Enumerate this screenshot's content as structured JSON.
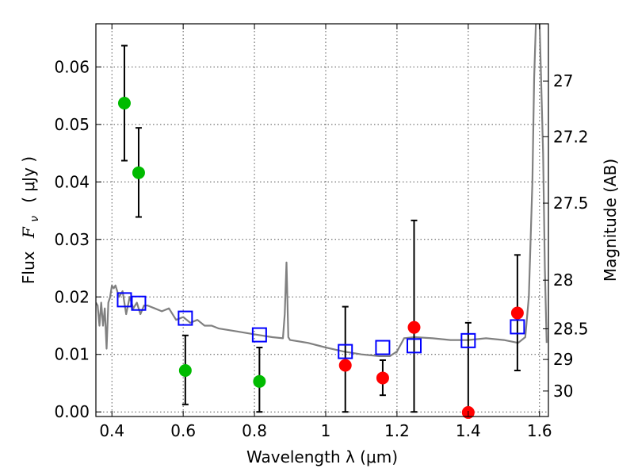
{
  "chart_data": {
    "type": "scatter",
    "xlabel": "Wavelength  λ (μm)",
    "ylabel": "Flux  F_ν  ( μJy )",
    "ylabel_parts": {
      "prefix": "Flux",
      "symbol": "F",
      "sub": "ν",
      "unit": "( μJy )"
    },
    "ylabel_right": "Magnitude (AB)",
    "xlim": [
      0.355,
      1.625
    ],
    "ylim": [
      -0.0008,
      0.0675
    ],
    "grid": true,
    "x_ticks": [
      {
        "value": 0.4,
        "label": "0.4"
      },
      {
        "value": 0.6,
        "label": "0.6"
      },
      {
        "value": 0.8,
        "label": "0.8"
      },
      {
        "value": 1.0,
        "label": "1"
      },
      {
        "value": 1.2,
        "label": "1.2"
      },
      {
        "value": 1.4,
        "label": "1.4"
      },
      {
        "value": 1.6,
        "label": "1.6"
      }
    ],
    "y_ticks": [
      {
        "value": 0.0,
        "label": "0.00"
      },
      {
        "value": 0.01,
        "label": "0.01"
      },
      {
        "value": 0.02,
        "label": "0.02"
      },
      {
        "value": 0.03,
        "label": "0.03"
      },
      {
        "value": 0.04,
        "label": "0.04"
      },
      {
        "value": 0.05,
        "label": "0.05"
      },
      {
        "value": 0.06,
        "label": "0.06"
      }
    ],
    "right_ticks": [
      {
        "mag": 27,
        "label": "27"
      },
      {
        "mag": 27.2,
        "label": "27.2"
      },
      {
        "mag": 27.5,
        "label": "27.5"
      },
      {
        "mag": 28,
        "label": "28"
      },
      {
        "mag": 28.5,
        "label": "28.5"
      },
      {
        "mag": 29,
        "label": "29"
      },
      {
        "mag": 30,
        "label": "30"
      }
    ],
    "series": [
      {
        "name": "green detections",
        "marker": "circle",
        "color": "#00bb00",
        "points": [
          {
            "x": 0.435,
            "y": 0.0537,
            "ylo": 0.0437,
            "yhi": 0.0637
          },
          {
            "x": 0.475,
            "y": 0.0416,
            "ylo": 0.0339,
            "yhi": 0.0494
          },
          {
            "x": 0.606,
            "y": 0.0072,
            "ylo": 0.0013,
            "yhi": 0.0133
          },
          {
            "x": 0.814,
            "y": 0.0053,
            "ylo": 0.0,
            "yhi": 0.0112
          }
        ]
      },
      {
        "name": "red detections",
        "marker": "circle",
        "color": "#ff0000",
        "points": [
          {
            "x": 1.055,
            "y": 0.0081,
            "ylo": 0.0,
            "yhi": 0.0183
          },
          {
            "x": 1.16,
            "y": 0.0059,
            "ylo": 0.0029,
            "yhi": 0.009
          },
          {
            "x": 1.248,
            "y": 0.0147,
            "ylo": 0.0,
            "yhi": 0.0333
          },
          {
            "x": 1.4,
            "y": -0.0001,
            "ylo": 0.0,
            "yhi": 0.0155
          },
          {
            "x": 1.538,
            "y": 0.0172,
            "ylo": 0.0072,
            "yhi": 0.0273
          }
        ]
      },
      {
        "name": "model photometry",
        "marker": "square",
        "color": "#0000ff",
        "points": [
          {
            "x": 0.435,
            "y": 0.0195
          },
          {
            "x": 0.475,
            "y": 0.0189
          },
          {
            "x": 0.606,
            "y": 0.0163
          },
          {
            "x": 0.814,
            "y": 0.0134
          },
          {
            "x": 1.055,
            "y": 0.0105
          },
          {
            "x": 1.16,
            "y": 0.0112
          },
          {
            "x": 1.248,
            "y": 0.0115
          },
          {
            "x": 1.4,
            "y": 0.0124
          },
          {
            "x": 1.538,
            "y": 0.0148
          }
        ]
      },
      {
        "name": "model spectrum",
        "marker": "line",
        "color": "#808080",
        "x": [
          0.355,
          0.36,
          0.365,
          0.37,
          0.375,
          0.38,
          0.385,
          0.39,
          0.395,
          0.4,
          0.405,
          0.41,
          0.42,
          0.43,
          0.44,
          0.45,
          0.46,
          0.47,
          0.48,
          0.49,
          0.5,
          0.52,
          0.54,
          0.56,
          0.58,
          0.6,
          0.62,
          0.64,
          0.66,
          0.68,
          0.7,
          0.75,
          0.8,
          0.85,
          0.88,
          0.885,
          0.89,
          0.895,
          0.9,
          0.95,
          1.0,
          1.05,
          1.1,
          1.15,
          1.18,
          1.2,
          1.22,
          1.25,
          1.3,
          1.35,
          1.4,
          1.45,
          1.5,
          1.54,
          1.56,
          1.57,
          1.58,
          1.585,
          1.59,
          1.6,
          1.61,
          1.615,
          1.62
        ],
        "y": [
          0.019,
          0.0185,
          0.015,
          0.019,
          0.015,
          0.018,
          0.011,
          0.019,
          0.02,
          0.022,
          0.0215,
          0.022,
          0.02,
          0.021,
          0.017,
          0.02,
          0.018,
          0.019,
          0.017,
          0.0185,
          0.0185,
          0.018,
          0.0175,
          0.018,
          0.016,
          0.0165,
          0.0155,
          0.016,
          0.015,
          0.015,
          0.0145,
          0.014,
          0.0135,
          0.013,
          0.0128,
          0.017,
          0.026,
          0.013,
          0.0125,
          0.012,
          0.0112,
          0.0105,
          0.01,
          0.0097,
          0.0097,
          0.0105,
          0.0128,
          0.013,
          0.0128,
          0.0125,
          0.0125,
          0.0128,
          0.0125,
          0.012,
          0.013,
          0.02,
          0.04,
          0.058,
          0.068,
          0.068,
          0.045,
          0.025,
          0.012
        ]
      }
    ]
  }
}
